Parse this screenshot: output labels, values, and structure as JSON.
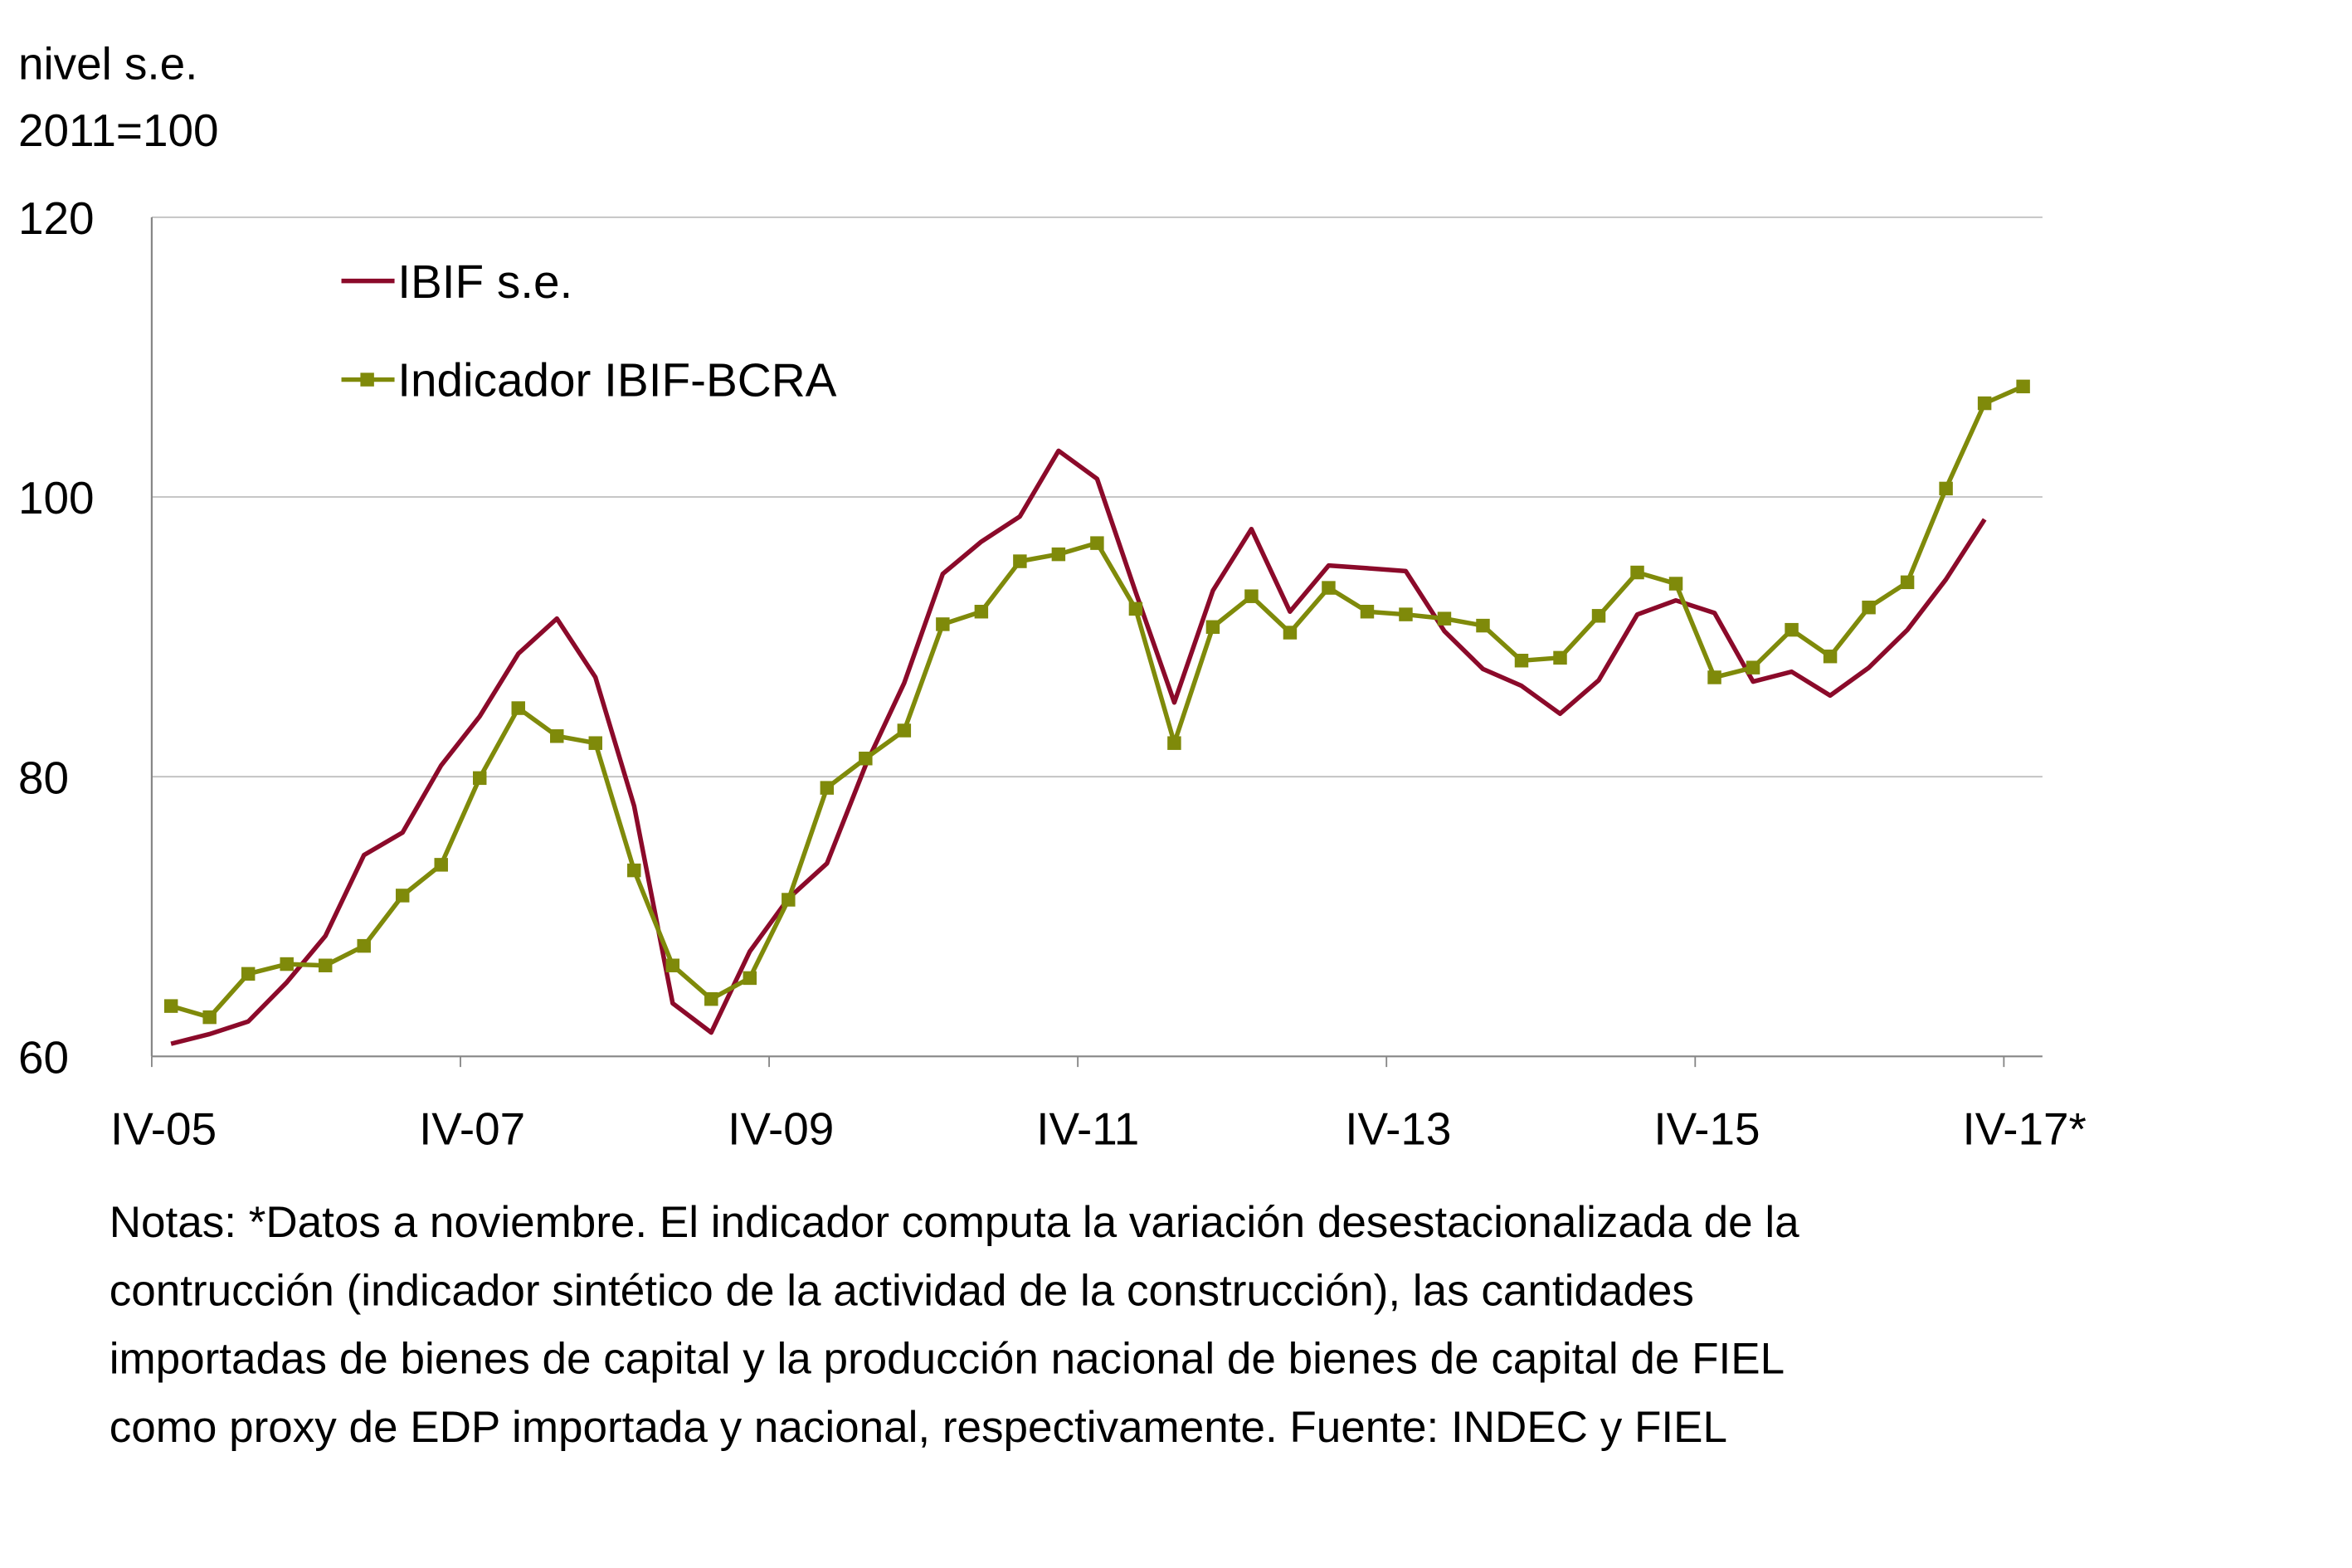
{
  "chart_data": {
    "type": "line",
    "ylabel_lines": [
      "nivel s.e.",
      "2011=100"
    ],
    "ylim": [
      60,
      120
    ],
    "yticks": [
      60,
      80,
      100,
      120
    ],
    "grid": true,
    "legend_position": "top-left",
    "x_tick_labels": [
      "IV-05",
      "IV-07",
      "IV-09",
      "IV-11",
      "IV-13",
      "IV-15",
      "IV-17*"
    ],
    "x_tick_every": 8,
    "n_quarters": 49,
    "series": [
      {
        "name": "IBIF s.e.",
        "color": "#8b0a2a",
        "marker": false,
        "values": [
          60.9,
          61.6,
          62.5,
          65.3,
          68.6,
          74.4,
          76.0,
          80.8,
          84.3,
          88.8,
          91.3,
          87.1,
          77.9,
          63.8,
          61.7,
          67.5,
          71.3,
          73.8,
          80.8,
          86.7,
          94.5,
          96.8,
          98.6,
          103.3,
          101.3,
          93.2,
          85.3,
          93.3,
          97.7,
          91.8,
          95.1,
          94.9,
          94.7,
          90.4,
          87.7,
          86.5,
          84.5,
          86.9,
          91.6,
          92.6,
          91.7,
          86.8,
          87.5,
          85.8,
          87.8,
          90.5,
          94.1,
          98.4
        ]
      },
      {
        "name": "Indicador IBIF-BCRA",
        "color": "#7f8a0a",
        "marker": true,
        "values": [
          63.6,
          62.8,
          65.9,
          66.6,
          66.5,
          67.9,
          71.5,
          73.7,
          79.9,
          84.9,
          82.9,
          82.4,
          73.3,
          66.5,
          64.1,
          65.6,
          71.2,
          79.2,
          81.3,
          83.3,
          90.9,
          91.8,
          95.4,
          95.9,
          96.7,
          92.0,
          82.4,
          90.7,
          92.9,
          90.3,
          93.5,
          91.8,
          91.6,
          91.3,
          90.8,
          88.3,
          88.5,
          91.5,
          94.6,
          93.8,
          87.1,
          87.8,
          90.5,
          88.6,
          92.1,
          93.9,
          100.6,
          106.7,
          107.9
        ]
      }
    ]
  },
  "notes": [
    "Notas: *Datos a noviembre. El indicador computa la variación desestacionalizada de la",
    "contrucción (indicador sintético de la actividad de la construcción), las cantidades",
    "importadas de bienes de capital y la producción nacional de bienes de capital de FIEL",
    "como proxy de EDP importada y nacional, respectivamente. Fuente: INDEC y FIEL"
  ]
}
